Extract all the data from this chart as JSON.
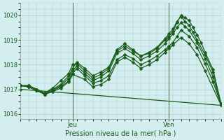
{
  "xlabel": "Pression niveau de la mer( hPa )",
  "ylim": [
    1015.8,
    1020.5
  ],
  "xlim": [
    0,
    50
  ],
  "yticks": [
    1016,
    1017,
    1018,
    1019,
    1020
  ],
  "bg_color": "#d4eef0",
  "grid_color": "#aacccc",
  "line_color": "#1a5c1a",
  "jeu_x": 13,
  "ven_x": 37,
  "lines": [
    {
      "x": [
        0,
        2,
        4,
        6,
        8,
        10,
        12,
        13,
        14,
        16,
        18,
        20,
        22,
        24,
        26,
        28,
        30,
        32,
        34,
        36,
        37,
        38,
        39,
        40,
        41,
        42,
        43,
        44,
        45,
        46,
        48,
        50
      ],
      "y": [
        1017.15,
        1017.15,
        1017.0,
        1016.85,
        1017.05,
        1017.35,
        1017.65,
        1018.0,
        1018.05,
        1017.75,
        1017.45,
        1017.6,
        1017.85,
        1018.55,
        1018.75,
        1018.55,
        1018.35,
        1018.45,
        1018.65,
        1019.0,
        1019.15,
        1019.35,
        1019.7,
        1020.0,
        1019.9,
        1019.8,
        1019.5,
        1019.2,
        1018.9,
        1018.5,
        1017.8,
        1016.4
      ]
    },
    {
      "x": [
        0,
        2,
        4,
        6,
        8,
        10,
        12,
        13,
        14,
        16,
        18,
        20,
        22,
        24,
        26,
        28,
        30,
        32,
        34,
        36,
        37,
        38,
        39,
        40,
        41,
        42,
        43,
        44,
        46,
        48,
        50
      ],
      "y": [
        1017.15,
        1017.15,
        1017.0,
        1016.85,
        1017.0,
        1017.2,
        1017.55,
        1017.85,
        1018.1,
        1017.85,
        1017.55,
        1017.7,
        1017.9,
        1018.6,
        1018.85,
        1018.6,
        1018.35,
        1018.5,
        1018.7,
        1019.05,
        1019.25,
        1019.45,
        1019.75,
        1019.95,
        1019.75,
        1019.6,
        1019.3,
        1019.0,
        1018.4,
        1017.7,
        1016.42
      ]
    },
    {
      "x": [
        0,
        2,
        4,
        6,
        8,
        10,
        12,
        13,
        14,
        16,
        18,
        20,
        22,
        24,
        26,
        28,
        30,
        32,
        34,
        36,
        37,
        38,
        39,
        40,
        41,
        42,
        44,
        46,
        48,
        50
      ],
      "y": [
        1017.15,
        1017.1,
        1016.95,
        1016.8,
        1016.95,
        1017.15,
        1017.45,
        1017.75,
        1017.95,
        1017.65,
        1017.35,
        1017.5,
        1017.75,
        1018.45,
        1018.65,
        1018.45,
        1018.2,
        1018.35,
        1018.55,
        1018.85,
        1019.05,
        1019.25,
        1019.5,
        1019.7,
        1019.55,
        1019.4,
        1018.9,
        1018.25,
        1017.5,
        1016.4
      ]
    },
    {
      "x": [
        0,
        2,
        4,
        6,
        8,
        10,
        12,
        13,
        14,
        16,
        18,
        20,
        22,
        24,
        26,
        28,
        30,
        32,
        34,
        36,
        37,
        38,
        39,
        40,
        42,
        44,
        46,
        48,
        50
      ],
      "y": [
        1017.15,
        1017.1,
        1016.95,
        1016.8,
        1016.95,
        1017.1,
        1017.35,
        1017.65,
        1017.85,
        1017.55,
        1017.25,
        1017.35,
        1017.55,
        1018.2,
        1018.4,
        1018.25,
        1018.0,
        1018.15,
        1018.35,
        1018.6,
        1018.75,
        1018.9,
        1019.15,
        1019.4,
        1019.15,
        1018.7,
        1018.05,
        1017.3,
        1016.38
      ]
    },
    {
      "x": [
        0,
        2,
        4,
        6,
        8,
        10,
        12,
        13,
        16,
        18,
        20,
        22,
        24,
        26,
        28,
        30,
        32,
        34,
        36,
        37,
        38,
        40,
        42,
        44,
        46,
        50
      ],
      "y": [
        1017.15,
        1017.1,
        1016.95,
        1016.8,
        1016.9,
        1017.05,
        1017.3,
        1017.6,
        1017.4,
        1017.1,
        1017.2,
        1017.4,
        1018.1,
        1018.3,
        1018.1,
        1017.85,
        1018.0,
        1018.2,
        1018.5,
        1018.65,
        1018.8,
        1019.1,
        1018.85,
        1018.4,
        1017.75,
        1016.35
      ]
    },
    {
      "x": [
        0,
        50
      ],
      "y": [
        1017.0,
        1016.35
      ]
    }
  ],
  "marker_size": 2.5,
  "linewidth": 0.9
}
